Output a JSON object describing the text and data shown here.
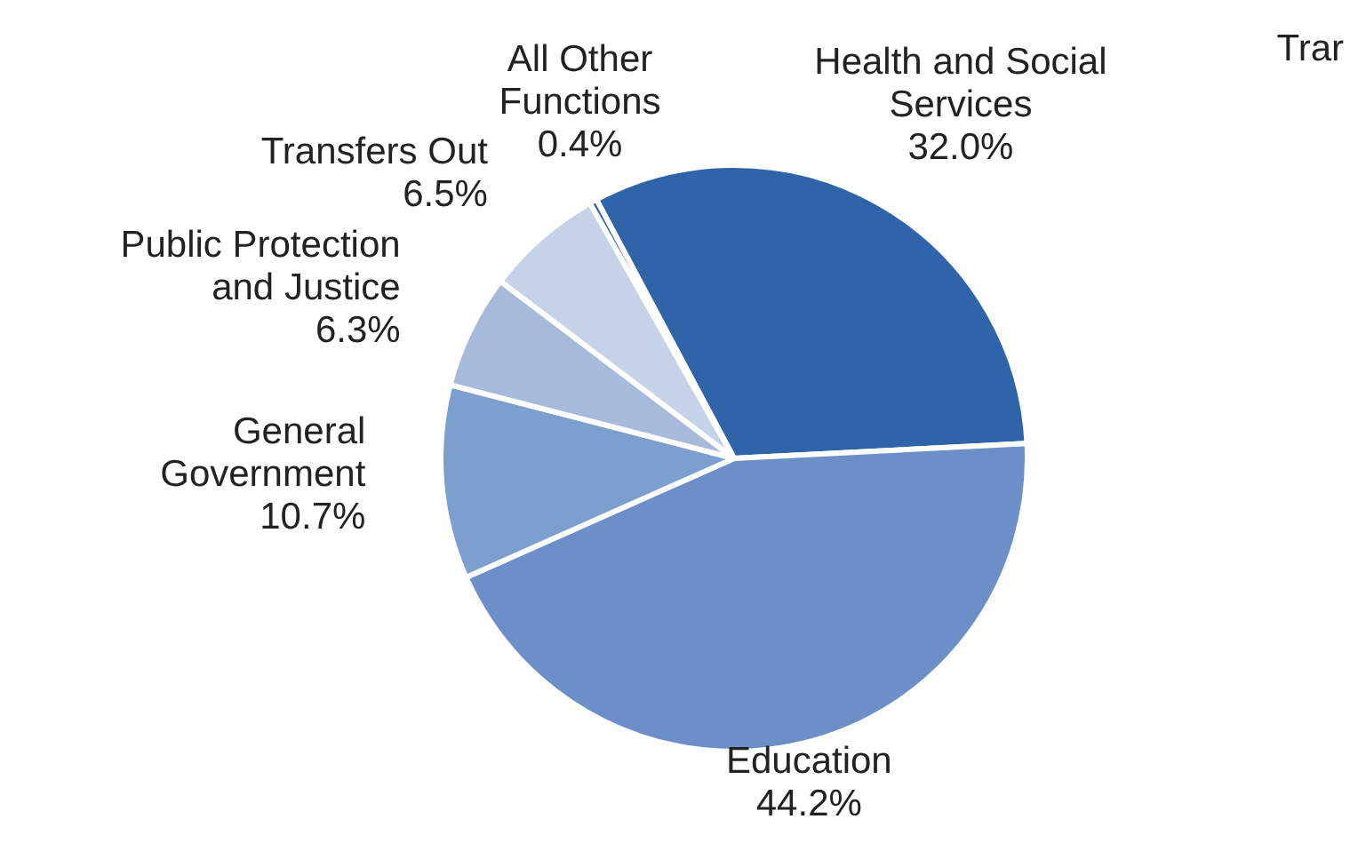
{
  "chart_data": {
    "type": "pie",
    "categories": [
      "Health and Social Services",
      "Education",
      "General Government",
      "Public Protection and Justice",
      "Transfers Out",
      "All Other Functions"
    ],
    "values": [
      32.0,
      44.2,
      10.7,
      6.3,
      6.5,
      0.4
    ],
    "value_labels": [
      "32.0%",
      "44.2%",
      "10.7%",
      "6.3%",
      "6.5%",
      "0.4%"
    ],
    "colors": [
      "#2f65a8",
      "#6b8fc6",
      "#7d9fd0",
      "#a8badb",
      "#c6d2e8",
      "#2a5c9e"
    ],
    "annotations": [
      {
        "text": "Trar"
      }
    ]
  }
}
